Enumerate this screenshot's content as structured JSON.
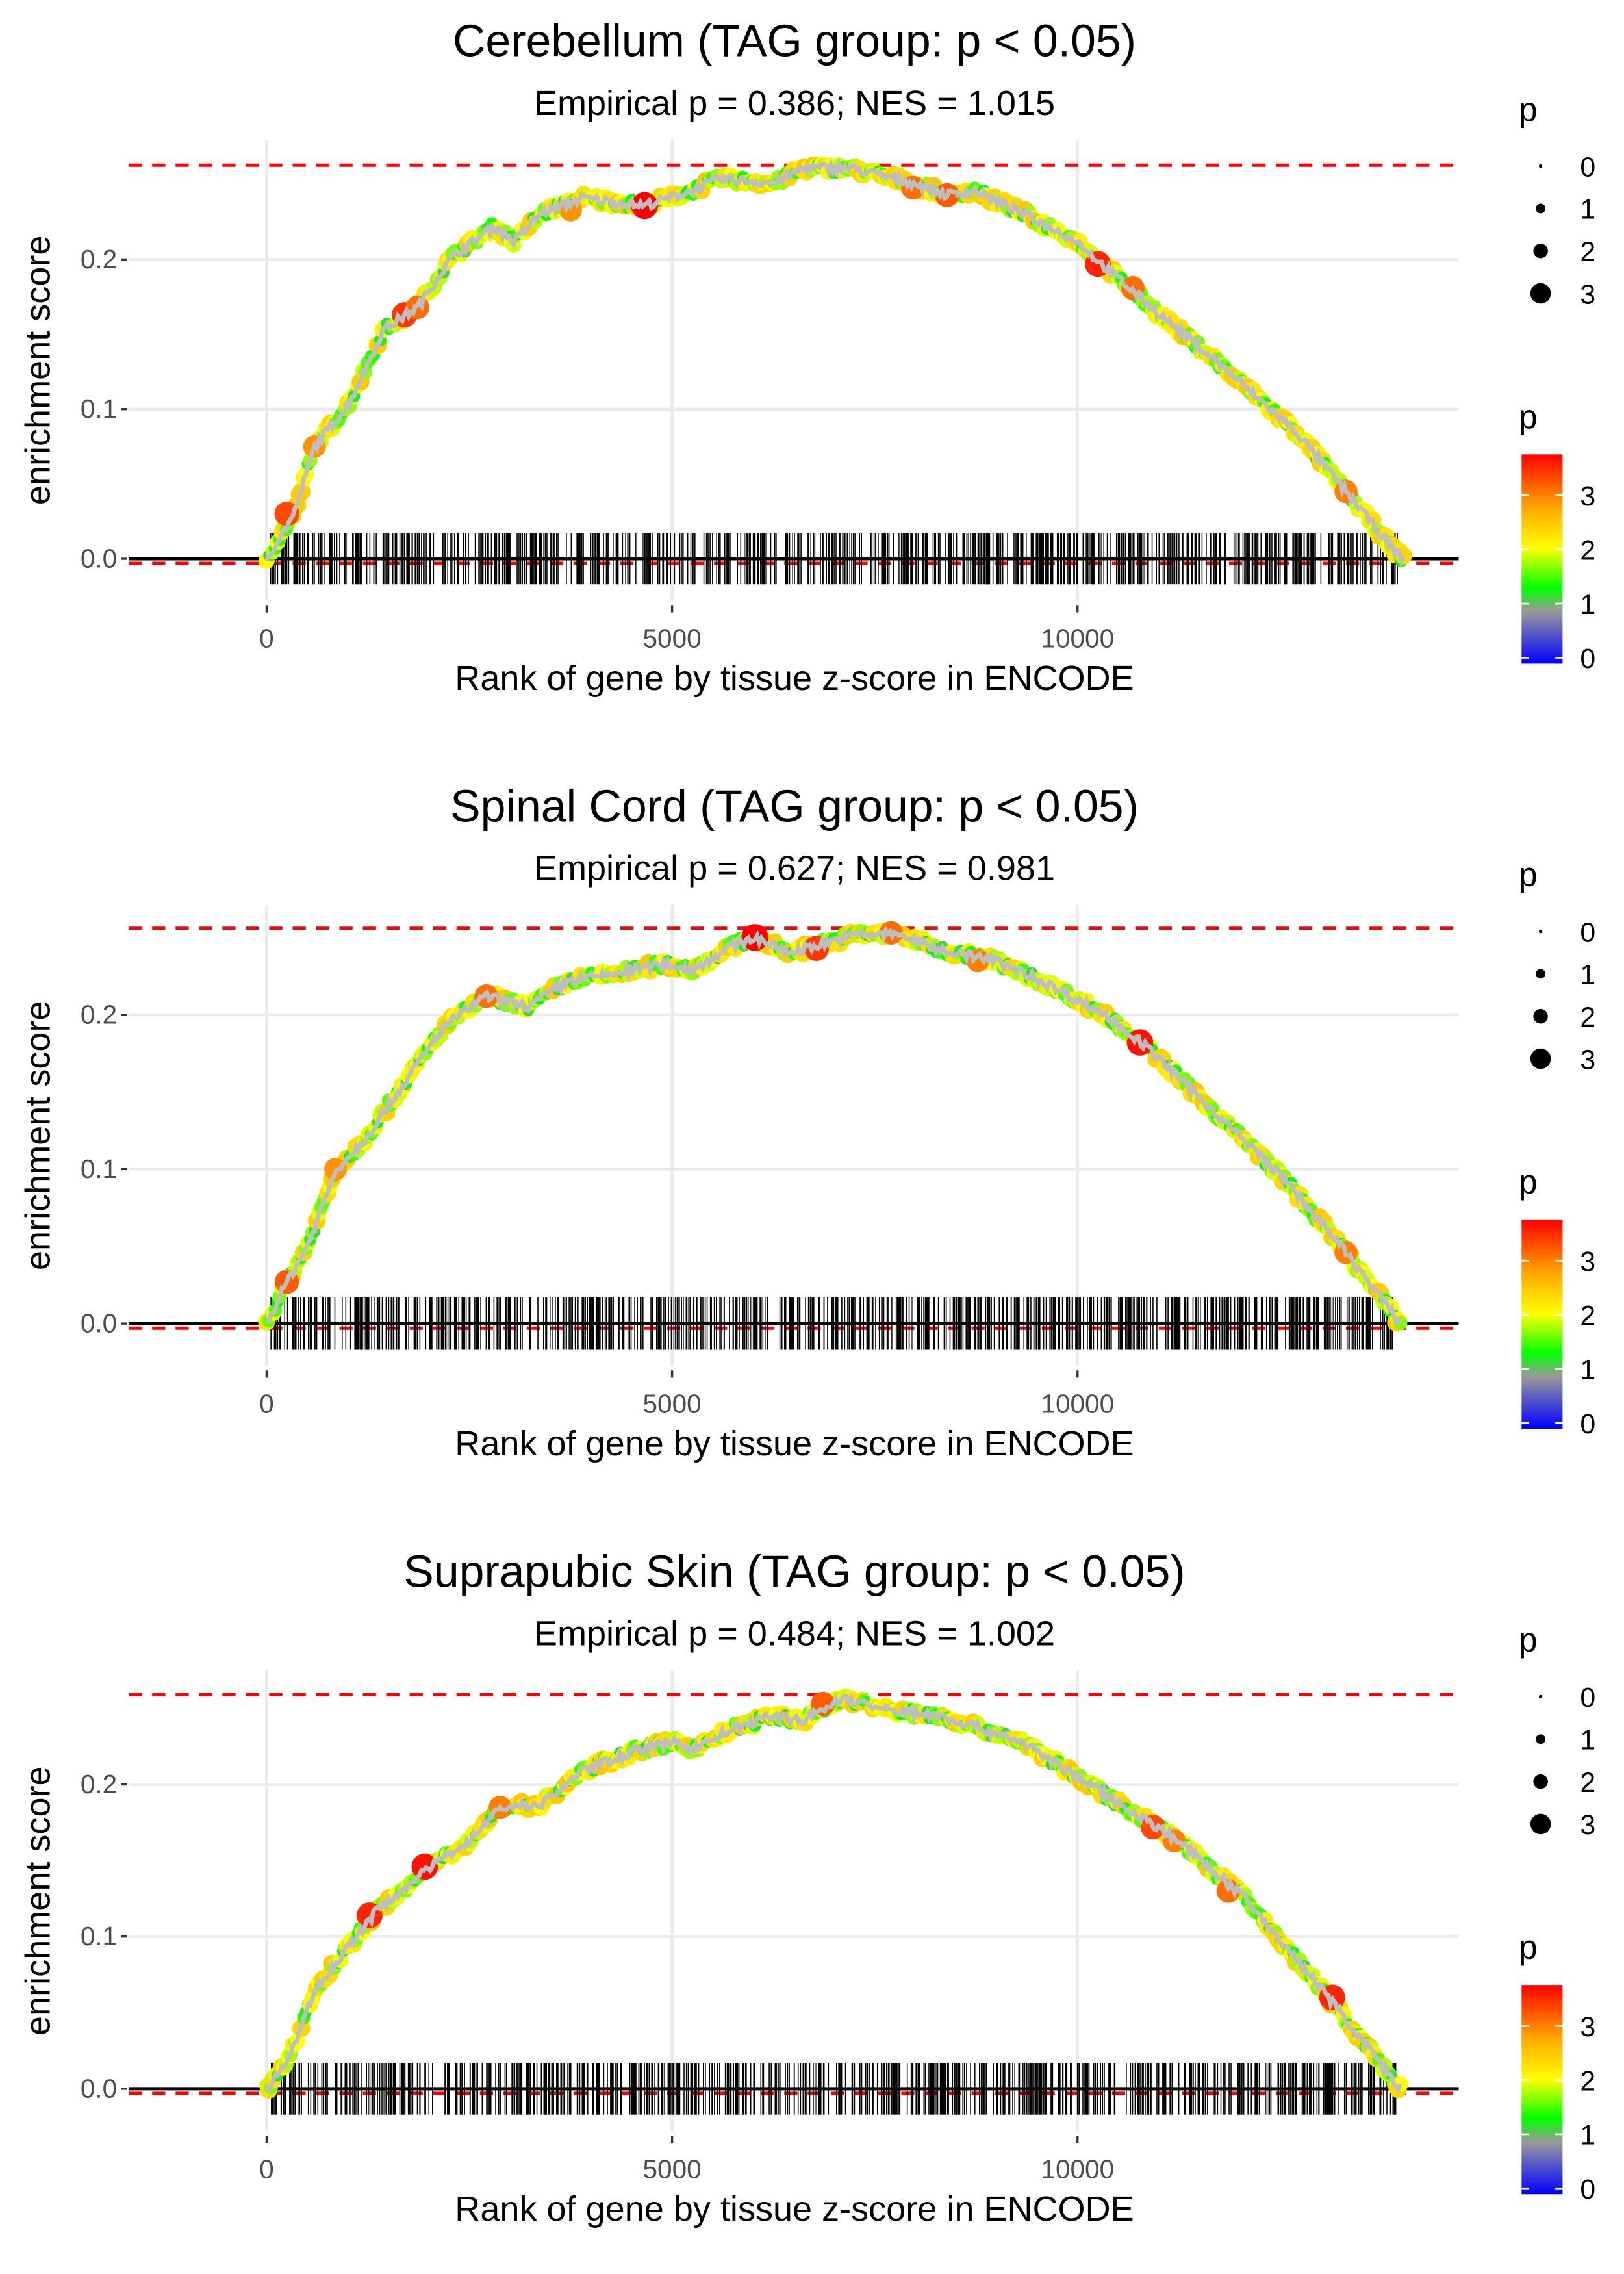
{
  "chart_data": [
    {
      "type": "scatter",
      "title": "Cerebellum (TAG group: p < 0.05)",
      "subtitle": "Empirical p = 0.386; NES = 1.015",
      "xlabel": "Rank of gene by tissue z-score in ENCODE",
      "ylabel": "enrichment score",
      "xticks": [
        0,
        5000,
        10000
      ],
      "xtick_labels": [
        "0",
        "5000",
        "10000"
      ],
      "yticks": [
        0,
        0.1,
        0.2
      ],
      "ytick_labels": [
        "0.0",
        "0.1",
        "0.2"
      ],
      "xlim": [
        -1700,
        14700
      ],
      "ylim": [
        -0.028,
        0.28
      ],
      "max_es": 0.263,
      "min_es": -0.003,
      "n_genes": 14020,
      "curve": [
        [
          0,
          0
        ],
        [
          340,
          0.03
        ],
        [
          590,
          0.075
        ],
        [
          1020,
          0.104
        ],
        [
          1440,
          0.153
        ],
        [
          1860,
          0.168
        ],
        [
          2290,
          0.202
        ],
        [
          2800,
          0.222
        ],
        [
          3050,
          0.212
        ],
        [
          3390,
          0.231
        ],
        [
          3900,
          0.241
        ],
        [
          4660,
          0.236
        ],
        [
          5250,
          0.246
        ],
        [
          5590,
          0.254
        ],
        [
          6270,
          0.251
        ],
        [
          6610,
          0.261
        ],
        [
          7200,
          0.261
        ],
        [
          7970,
          0.251
        ],
        [
          8390,
          0.243
        ],
        [
          8730,
          0.246
        ],
        [
          9320,
          0.231
        ],
        [
          10000,
          0.212
        ],
        [
          10250,
          0.199
        ],
        [
          11020,
          0.163
        ],
        [
          11690,
          0.133
        ],
        [
          12710,
          0.084
        ],
        [
          13310,
          0.045
        ],
        [
          13900,
          0.006
        ],
        [
          14020,
          0
        ]
      ],
      "highlight_points": [
        [
          250,
          0.03,
          3.4
        ],
        [
          590,
          0.075,
          3.0
        ],
        [
          1700,
          0.163,
          3.5
        ],
        [
          1860,
          0.168,
          3.2
        ],
        [
          3750,
          0.233,
          3.0
        ],
        [
          4660,
          0.236,
          3.8
        ],
        [
          7970,
          0.248,
          3.2
        ],
        [
          8390,
          0.243,
          3.3
        ],
        [
          10250,
          0.197,
          3.6
        ],
        [
          10680,
          0.181,
          3.2
        ],
        [
          13310,
          0.045,
          3.1
        ]
      ]
    },
    {
      "type": "scatter",
      "title": "Spinal Cord (TAG group: p < 0.05)",
      "subtitle": "Empirical p = 0.627; NES = 0.981",
      "xlabel": "Rank of gene by tissue z-score in ENCODE",
      "ylabel": "enrichment score",
      "xticks": [
        0,
        5000,
        10000
      ],
      "xtick_labels": [
        "0",
        "5000",
        "10000"
      ],
      "yticks": [
        0,
        0.1,
        0.2
      ],
      "ytick_labels": [
        "0.0",
        "0.1",
        "0.2"
      ],
      "xlim": [
        -1700,
        14700
      ],
      "ylim": [
        -0.0275,
        0.271
      ],
      "max_es": 0.256,
      "min_es": -0.003,
      "n_genes": 13980,
      "curve": [
        [
          0,
          0
        ],
        [
          250,
          0.027
        ],
        [
          510,
          0.051
        ],
        [
          850,
          0.099
        ],
        [
          1190,
          0.118
        ],
        [
          1700,
          0.156
        ],
        [
          2200,
          0.193
        ],
        [
          2710,
          0.212
        ],
        [
          3220,
          0.205
        ],
        [
          3730,
          0.222
        ],
        [
          4240,
          0.226
        ],
        [
          4920,
          0.233
        ],
        [
          5250,
          0.229
        ],
        [
          5760,
          0.245
        ],
        [
          6020,
          0.25
        ],
        [
          6440,
          0.24
        ],
        [
          6780,
          0.245
        ],
        [
          7290,
          0.252
        ],
        [
          7800,
          0.252
        ],
        [
          8310,
          0.242
        ],
        [
          8980,
          0.235
        ],
        [
          9660,
          0.219
        ],
        [
          10340,
          0.2
        ],
        [
          10850,
          0.179
        ],
        [
          11690,
          0.137
        ],
        [
          12540,
          0.094
        ],
        [
          13310,
          0.046
        ],
        [
          13980,
          0
        ]
      ],
      "highlight_points": [
        [
          250,
          0.027,
          3.3
        ],
        [
          850,
          0.1,
          3.0
        ],
        [
          2710,
          0.212,
          3.2
        ],
        [
          6020,
          0.25,
          3.8
        ],
        [
          6780,
          0.243,
          3.5
        ],
        [
          7700,
          0.253,
          3.2
        ],
        [
          8770,
          0.235,
          3.1
        ],
        [
          10770,
          0.182,
          3.7
        ],
        [
          13310,
          0.046,
          3.1
        ]
      ]
    },
    {
      "type": "scatter",
      "title": "Suprapubic Skin (TAG group: p < 0.05)",
      "subtitle": "Empirical p = 0.484; NES = 1.002",
      "xlabel": "Rank of gene by tissue z-score in ENCODE",
      "ylabel": "enrichment score",
      "xticks": [
        0,
        5000,
        10000
      ],
      "xtick_labels": [
        "0",
        "5000",
        "10000"
      ],
      "yticks": [
        0,
        0.1,
        0.2
      ],
      "ytick_labels": [
        "0.0",
        "0.1",
        "0.2"
      ],
      "xlim": [
        -1700,
        14700
      ],
      "ylim": [
        -0.028,
        0.275
      ],
      "max_es": 0.259,
      "min_es": -0.003,
      "n_genes": 13980,
      "curve": [
        [
          0,
          0
        ],
        [
          250,
          0.016
        ],
        [
          590,
          0.064
        ],
        [
          930,
          0.088
        ],
        [
          1360,
          0.117
        ],
        [
          1700,
          0.132
        ],
        [
          2030,
          0.146
        ],
        [
          2540,
          0.165
        ],
        [
          2880,
          0.185
        ],
        [
          3390,
          0.187
        ],
        [
          3900,
          0.209
        ],
        [
          4580,
          0.223
        ],
        [
          5080,
          0.228
        ],
        [
          5250,
          0.223
        ],
        [
          5760,
          0.237
        ],
        [
          6270,
          0.245
        ],
        [
          6610,
          0.242
        ],
        [
          7120,
          0.257
        ],
        [
          7630,
          0.249
        ],
        [
          8310,
          0.245
        ],
        [
          9320,
          0.228
        ],
        [
          10170,
          0.199
        ],
        [
          11190,
          0.165
        ],
        [
          12030,
          0.127
        ],
        [
          13050,
          0.063
        ],
        [
          13980,
          0
        ]
      ],
      "highlight_points": [
        [
          1270,
          0.114,
          3.6
        ],
        [
          1950,
          0.146,
          3.7
        ],
        [
          2880,
          0.185,
          3.1
        ],
        [
          6860,
          0.253,
          3.3
        ],
        [
          10930,
          0.172,
          3.4
        ],
        [
          11190,
          0.163,
          3.1
        ],
        [
          11860,
          0.13,
          3.2
        ],
        [
          13140,
          0.06,
          3.6
        ]
      ]
    }
  ],
  "legend": {
    "size_title": "p",
    "size_labels": [
      "0",
      "1",
      "2",
      "3"
    ],
    "color_title": "p",
    "color_labels": [
      "3",
      "2",
      "1",
      "0"
    ],
    "color_stops": [
      "#0000ff",
      "#999999",
      "#00ff00",
      "#ffff00",
      "#ffa500",
      "#ff0000"
    ]
  }
}
